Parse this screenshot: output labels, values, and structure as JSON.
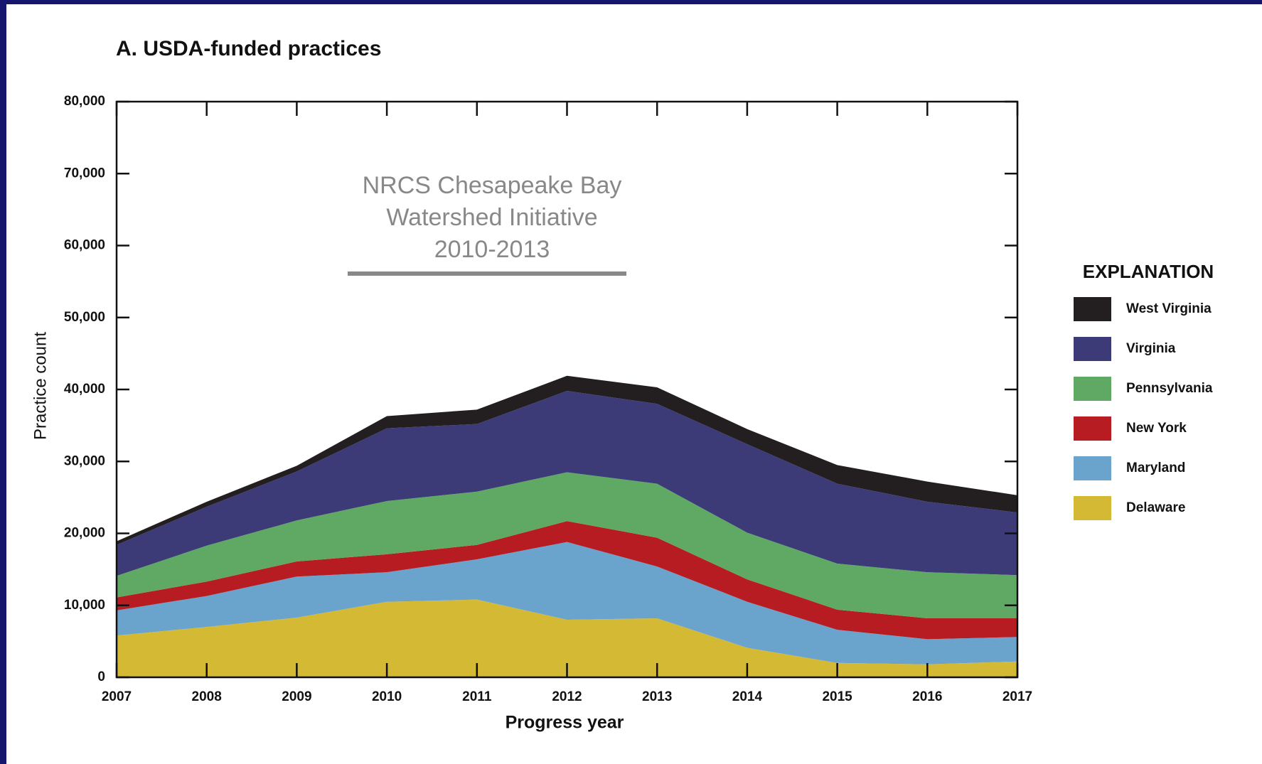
{
  "chart_data": {
    "type": "stacked_area",
    "title": "A. USDA-funded practices",
    "xlabel": "Progress year",
    "ylabel": "Practice count",
    "annotation": [
      "NRCS Chesapeake Bay",
      "Watershed Initiative",
      "2010-2013"
    ],
    "legend_title": "EXPLANATION",
    "categories": [
      "2007",
      "2008",
      "2009",
      "2010",
      "2011",
      "2012",
      "2013",
      "2014",
      "2015",
      "2016",
      "2017"
    ],
    "series": [
      {
        "name": "Delaware",
        "color": "#d4b935",
        "values": [
          5800,
          7000,
          8300,
          10500,
          10800,
          8000,
          8200,
          4100,
          2000,
          1800,
          2200
        ]
      },
      {
        "name": "Maryland",
        "color": "#6aa3cc",
        "values": [
          3500,
          4300,
          5700,
          4100,
          5600,
          10800,
          7200,
          6400,
          4600,
          3500,
          3400
        ]
      },
      {
        "name": "New York",
        "color": "#b71c22",
        "values": [
          1800,
          2000,
          2100,
          2500,
          2000,
          2900,
          4000,
          3100,
          2800,
          2900,
          2600
        ]
      },
      {
        "name": "Pennsylvania",
        "color": "#5fa965",
        "values": [
          3000,
          5000,
          5700,
          7400,
          7400,
          6800,
          7500,
          6500,
          6400,
          6400,
          6000
        ]
      },
      {
        "name": "Virginia",
        "color": "#3d3a78",
        "values": [
          4300,
          5400,
          6800,
          10100,
          9400,
          11300,
          11100,
          12300,
          11100,
          9800,
          8700
        ]
      },
      {
        "name": "West Virginia",
        "color": "#231f20",
        "values": [
          500,
          700,
          800,
          1700,
          2000,
          2100,
          2300,
          2100,
          2600,
          2800,
          2400
        ]
      }
    ],
    "ylim": [
      0,
      80000
    ],
    "yticks": [
      0,
      {
        "value": 10000,
        "label": "10,000"
      },
      {
        "value": 20000,
        "label": "20,000"
      },
      {
        "value": 30000,
        "label": "30,000"
      },
      {
        "value": 40000,
        "label": "40,000"
      },
      {
        "value": 50000,
        "label": "50,000"
      },
      {
        "value": 60000,
        "label": "60,000"
      },
      {
        "value": 70000,
        "label": "70,000"
      },
      {
        "value": 80000,
        "label": "80,000"
      }
    ]
  }
}
